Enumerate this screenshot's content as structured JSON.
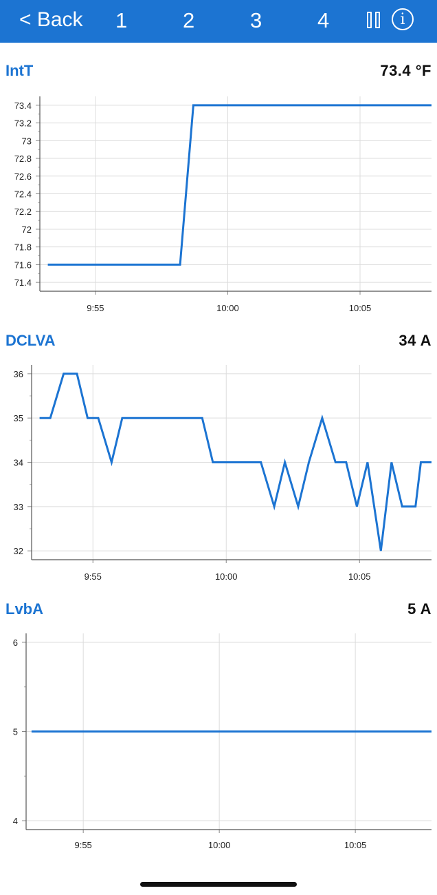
{
  "nav": {
    "back_label": "< Back",
    "pages": [
      "1",
      "2",
      "3",
      "4"
    ],
    "pause_icon": "pause-icon",
    "info_icon": "info-icon",
    "info_glyph": "i"
  },
  "colors": {
    "accent": "#1c74d2",
    "line": "#1c74d2",
    "grid": "#dcdcdc"
  },
  "chart_data": [
    {
      "type": "line",
      "title": "IntT",
      "current_value": "73.4 °F",
      "x_ticks": [
        "9:55",
        "10:00",
        "10:05"
      ],
      "x_tick_minutes": [
        595,
        600,
        605
      ],
      "x_range": [
        592.9,
        607.7
      ],
      "y_ticks": [
        "71.4",
        "71.6",
        "71.8",
        "72",
        "72.2",
        "72.4",
        "72.6",
        "72.8",
        "73",
        "73.2",
        "73.4"
      ],
      "ylim": [
        71.3,
        73.5
      ],
      "grid": true,
      "series": [
        {
          "x": [
            593.2,
            598.2,
            598.7,
            607.7
          ],
          "y": [
            71.6,
            71.6,
            73.4,
            73.4
          ]
        }
      ]
    },
    {
      "type": "line",
      "title": "DCLVA",
      "current_value": "34 A",
      "x_ticks": [
        "9:55",
        "10:00",
        "10:05"
      ],
      "x_tick_minutes": [
        595,
        600,
        605
      ],
      "x_range": [
        592.7,
        607.7
      ],
      "y_ticks": [
        "32",
        "33",
        "34",
        "35",
        "36"
      ],
      "ylim": [
        31.8,
        36.2
      ],
      "grid": true,
      "series": [
        {
          "x": [
            593.0,
            593.4,
            593.9,
            594.4,
            594.8,
            595.2,
            595.7,
            596.1,
            599.1,
            599.5,
            601.3,
            601.8,
            602.2,
            602.7,
            603.1,
            603.6,
            604.1,
            604.5,
            604.9,
            605.3,
            605.8,
            606.2,
            606.6,
            607.1,
            607.3,
            607.7
          ],
          "y": [
            35,
            35,
            36,
            36,
            35,
            35,
            34,
            35,
            35,
            34,
            34,
            33,
            34,
            33,
            34,
            35,
            34,
            34,
            33,
            34,
            32,
            34,
            33,
            33,
            34,
            34
          ]
        }
      ]
    },
    {
      "type": "line",
      "title": "LvbA",
      "current_value": "5 A",
      "x_ticks": [
        "9:55",
        "10:00",
        "10:05"
      ],
      "x_tick_minutes": [
        595,
        600,
        605
      ],
      "x_range": [
        592.9,
        607.8
      ],
      "y_ticks": [
        "4",
        "5",
        "6"
      ],
      "ylim": [
        3.9,
        6.1
      ],
      "grid": true,
      "series": [
        {
          "x": [
            593.1,
            607.8
          ],
          "y": [
            5,
            5
          ]
        }
      ]
    }
  ]
}
